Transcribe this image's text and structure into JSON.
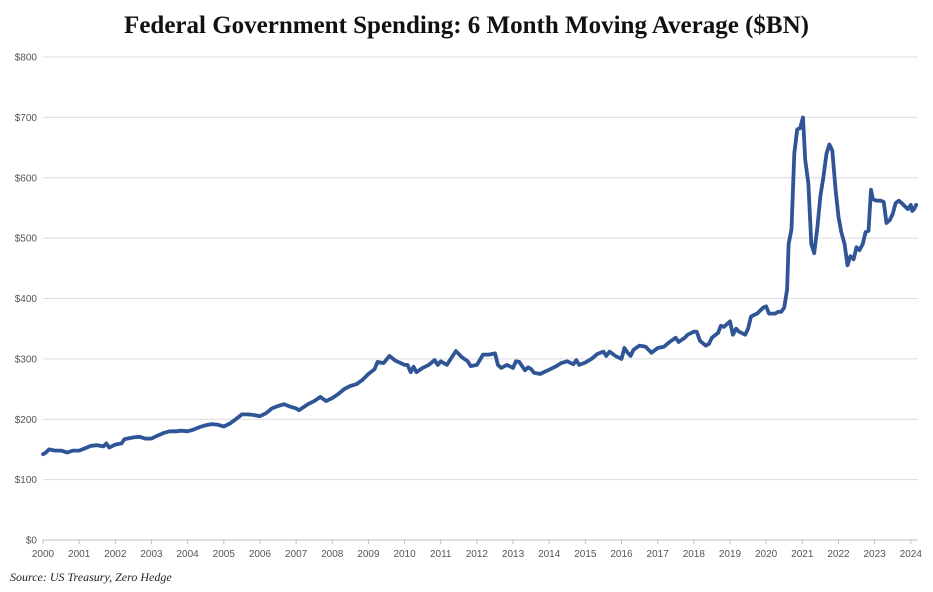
{
  "chart_data": {
    "type": "line",
    "title": "Federal Government Spending: 6 Month Moving Average ($BN)",
    "source": "Source: US Treasury, Zero Hedge",
    "xlabel": "",
    "ylabel": "",
    "ylim": [
      0,
      800
    ],
    "xlim": [
      2000,
      2024.2
    ],
    "grid": "horizontal",
    "y_ticks": [
      "$0",
      "$100",
      "$200",
      "$300",
      "$400",
      "$500",
      "$600",
      "$700",
      "$800"
    ],
    "x_ticks": [
      "2000",
      "2001",
      "2002",
      "2003",
      "2004",
      "2005",
      "2006",
      "2007",
      "2008",
      "2009",
      "2010",
      "2011",
      "2012",
      "2013",
      "2014",
      "2015",
      "2016",
      "2017",
      "2018",
      "2019",
      "2020",
      "2021",
      "2022",
      "2023",
      "2024"
    ],
    "color": "#2f5597",
    "series": [
      {
        "points": [
          [
            2000.0,
            142
          ],
          [
            2000.08,
            145
          ],
          [
            2000.17,
            150
          ],
          [
            2000.33,
            148
          ],
          [
            2000.5,
            148
          ],
          [
            2000.67,
            145
          ],
          [
            2000.83,
            148
          ],
          [
            2001.0,
            148
          ],
          [
            2001.17,
            152
          ],
          [
            2001.33,
            156
          ],
          [
            2001.5,
            157
          ],
          [
            2001.67,
            155
          ],
          [
            2001.75,
            160
          ],
          [
            2001.83,
            153
          ],
          [
            2002.0,
            158
          ],
          [
            2002.17,
            160
          ],
          [
            2002.25,
            167
          ],
          [
            2002.5,
            170
          ],
          [
            2002.67,
            171
          ],
          [
            2002.83,
            168
          ],
          [
            2003.0,
            168
          ],
          [
            2003.17,
            173
          ],
          [
            2003.33,
            177
          ],
          [
            2003.5,
            180
          ],
          [
            2003.67,
            180
          ],
          [
            2003.83,
            181
          ],
          [
            2004.0,
            180
          ],
          [
            2004.17,
            183
          ],
          [
            2004.33,
            187
          ],
          [
            2004.5,
            190
          ],
          [
            2004.67,
            192
          ],
          [
            2004.83,
            191
          ],
          [
            2005.0,
            188
          ],
          [
            2005.17,
            193
          ],
          [
            2005.33,
            200
          ],
          [
            2005.5,
            208
          ],
          [
            2005.67,
            208
          ],
          [
            2005.83,
            207
          ],
          [
            2006.0,
            205
          ],
          [
            2006.17,
            210
          ],
          [
            2006.33,
            218
          ],
          [
            2006.5,
            222
          ],
          [
            2006.67,
            225
          ],
          [
            2006.83,
            221
          ],
          [
            2007.0,
            218
          ],
          [
            2007.08,
            215
          ],
          [
            2007.33,
            225
          ],
          [
            2007.5,
            230
          ],
          [
            2007.67,
            237
          ],
          [
            2007.83,
            230
          ],
          [
            2008.0,
            235
          ],
          [
            2008.17,
            242
          ],
          [
            2008.33,
            250
          ],
          [
            2008.5,
            255
          ],
          [
            2008.67,
            258
          ],
          [
            2008.83,
            265
          ],
          [
            2009.0,
            275
          ],
          [
            2009.17,
            283
          ],
          [
            2009.25,
            295
          ],
          [
            2009.42,
            293
          ],
          [
            2009.58,
            305
          ],
          [
            2009.75,
            297
          ],
          [
            2010.0,
            290
          ],
          [
            2010.08,
            290
          ],
          [
            2010.17,
            278
          ],
          [
            2010.25,
            287
          ],
          [
            2010.33,
            278
          ],
          [
            2010.5,
            285
          ],
          [
            2010.67,
            290
          ],
          [
            2010.83,
            298
          ],
          [
            2010.92,
            290
          ],
          [
            2011.0,
            296
          ],
          [
            2011.17,
            290
          ],
          [
            2011.33,
            305
          ],
          [
            2011.42,
            313
          ],
          [
            2011.58,
            303
          ],
          [
            2011.75,
            296
          ],
          [
            2011.83,
            288
          ],
          [
            2012.0,
            290
          ],
          [
            2012.08,
            298
          ],
          [
            2012.17,
            307
          ],
          [
            2012.33,
            307
          ],
          [
            2012.5,
            309
          ],
          [
            2012.58,
            290
          ],
          [
            2012.67,
            285
          ],
          [
            2012.83,
            290
          ],
          [
            2013.0,
            285
          ],
          [
            2013.08,
            296
          ],
          [
            2013.17,
            295
          ],
          [
            2013.33,
            281
          ],
          [
            2013.42,
            286
          ],
          [
            2013.5,
            283
          ],
          [
            2013.58,
            277
          ],
          [
            2013.75,
            275
          ],
          [
            2013.92,
            280
          ],
          [
            2014.0,
            282
          ],
          [
            2014.17,
            287
          ],
          [
            2014.33,
            293
          ],
          [
            2014.5,
            296
          ],
          [
            2014.67,
            291
          ],
          [
            2014.75,
            298
          ],
          [
            2014.83,
            290
          ],
          [
            2015.0,
            294
          ],
          [
            2015.17,
            300
          ],
          [
            2015.33,
            308
          ],
          [
            2015.5,
            312
          ],
          [
            2015.58,
            305
          ],
          [
            2015.67,
            312
          ],
          [
            2015.83,
            305
          ],
          [
            2016.0,
            300
          ],
          [
            2016.08,
            318
          ],
          [
            2016.17,
            310
          ],
          [
            2016.25,
            305
          ],
          [
            2016.33,
            315
          ],
          [
            2016.5,
            322
          ],
          [
            2016.67,
            320
          ],
          [
            2016.83,
            310
          ],
          [
            2017.0,
            318
          ],
          [
            2017.17,
            320
          ],
          [
            2017.33,
            328
          ],
          [
            2017.5,
            335
          ],
          [
            2017.58,
            328
          ],
          [
            2017.75,
            335
          ],
          [
            2017.83,
            340
          ],
          [
            2018.0,
            345
          ],
          [
            2018.08,
            345
          ],
          [
            2018.17,
            330
          ],
          [
            2018.33,
            322
          ],
          [
            2018.42,
            325
          ],
          [
            2018.5,
            335
          ],
          [
            2018.67,
            343
          ],
          [
            2018.75,
            355
          ],
          [
            2018.83,
            353
          ],
          [
            2019.0,
            362
          ],
          [
            2019.08,
            340
          ],
          [
            2019.17,
            350
          ],
          [
            2019.25,
            345
          ],
          [
            2019.42,
            340
          ],
          [
            2019.5,
            350
          ],
          [
            2019.58,
            370
          ],
          [
            2019.75,
            375
          ],
          [
            2019.92,
            385
          ],
          [
            2020.0,
            387
          ],
          [
            2020.08,
            375
          ],
          [
            2020.25,
            375
          ],
          [
            2020.33,
            378
          ],
          [
            2020.42,
            378
          ],
          [
            2020.5,
            385
          ],
          [
            2020.58,
            415
          ],
          [
            2020.62,
            490
          ],
          [
            2020.7,
            515
          ],
          [
            2020.78,
            640
          ],
          [
            2020.86,
            680
          ],
          [
            2020.94,
            682
          ],
          [
            2021.02,
            700
          ],
          [
            2021.08,
            630
          ],
          [
            2021.17,
            590
          ],
          [
            2021.25,
            490
          ],
          [
            2021.33,
            475
          ],
          [
            2021.42,
            520
          ],
          [
            2021.5,
            570
          ],
          [
            2021.58,
            600
          ],
          [
            2021.67,
            640
          ],
          [
            2021.75,
            655
          ],
          [
            2021.83,
            645
          ],
          [
            2021.92,
            580
          ],
          [
            2022.0,
            535
          ],
          [
            2022.08,
            510
          ],
          [
            2022.17,
            490
          ],
          [
            2022.25,
            455
          ],
          [
            2022.33,
            470
          ],
          [
            2022.42,
            465
          ],
          [
            2022.5,
            485
          ],
          [
            2022.58,
            480
          ],
          [
            2022.67,
            490
          ],
          [
            2022.75,
            510
          ],
          [
            2022.83,
            512
          ],
          [
            2022.9,
            580
          ],
          [
            2022.95,
            565
          ],
          [
            2023.0,
            563
          ],
          [
            2023.08,
            562
          ],
          [
            2023.17,
            562
          ],
          [
            2023.25,
            560
          ],
          [
            2023.33,
            525
          ],
          [
            2023.42,
            530
          ],
          [
            2023.5,
            540
          ],
          [
            2023.58,
            558
          ],
          [
            2023.67,
            562
          ],
          [
            2023.75,
            558
          ],
          [
            2023.83,
            553
          ],
          [
            2023.92,
            548
          ],
          [
            2024.0,
            555
          ],
          [
            2024.04,
            545
          ],
          [
            2024.08,
            547
          ],
          [
            2024.15,
            555
          ]
        ]
      }
    ]
  }
}
